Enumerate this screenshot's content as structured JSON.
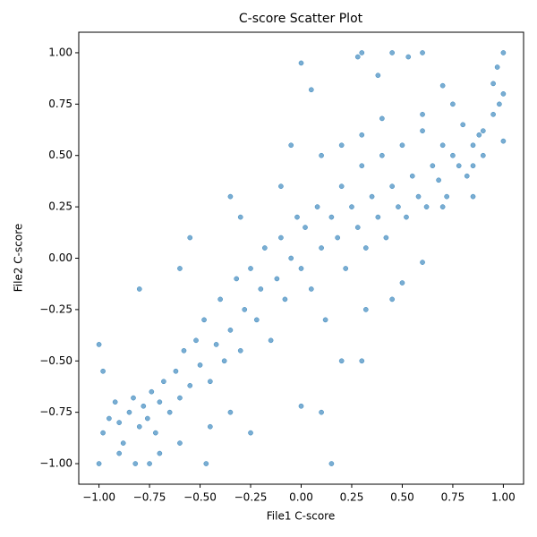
{
  "chart_data": {
    "type": "scatter",
    "title": "C-score Scatter Plot",
    "x_label": "File1 C-score",
    "y_label": "File2 C-score",
    "xlim": [
      -1.1,
      1.1
    ],
    "ylim": [
      -1.1,
      1.1
    ],
    "xticks": [
      {
        "value": -1,
        "label": "−1.00"
      },
      {
        "value": -0.75,
        "label": "−0.75"
      },
      {
        "value": -0.5,
        "label": "−0.50"
      },
      {
        "value": -0.25,
        "label": "−0.25"
      },
      {
        "value": 0,
        "label": "0.00"
      },
      {
        "value": 0.25,
        "label": "0.25"
      },
      {
        "value": 0.5,
        "label": "0.50"
      },
      {
        "value": 0.75,
        "label": "0.75"
      },
      {
        "value": 1,
        "label": "1.00"
      }
    ],
    "yticks": [
      {
        "value": -1,
        "label": "−1.00"
      },
      {
        "value": -0.75,
        "label": "−0.75"
      },
      {
        "value": -0.5,
        "label": "−0.50"
      },
      {
        "value": -0.25,
        "label": "−0.25"
      },
      {
        "value": 0,
        "label": "0.00"
      },
      {
        "value": 0.25,
        "label": "0.25"
      },
      {
        "value": 0.5,
        "label": "0.50"
      },
      {
        "value": 0.75,
        "label": "0.75"
      },
      {
        "value": 1,
        "label": "1.00"
      }
    ],
    "color": "#1f77b4",
    "x": [
      -1,
      -0.75,
      -0.82,
      -0.47,
      0.15,
      -0.98,
      -0.95,
      -0.92,
      -0.9,
      -0.88,
      -0.85,
      -0.83,
      -0.8,
      -0.78,
      -0.76,
      -0.74,
      -0.72,
      -0.7,
      -0.68,
      -0.65,
      -0.62,
      -0.6,
      -0.58,
      -0.55,
      -0.52,
      -0.5,
      -0.48,
      -0.45,
      -0.42,
      -0.4,
      -0.38,
      -0.35,
      -0.32,
      -0.3,
      -0.28,
      -0.25,
      -0.22,
      -0.2,
      -0.18,
      -0.15,
      -0.12,
      -0.1,
      -0.08,
      -0.05,
      -0.02,
      0,
      0.02,
      0.05,
      0.08,
      0.1,
      0.12,
      0.15,
      0.18,
      0.2,
      0.22,
      0.25,
      0.28,
      0.3,
      0.32,
      0.35,
      0.38,
      0.4,
      0.42,
      0.45,
      0.48,
      0.5,
      0.52,
      0.55,
      0.58,
      0.6,
      0.62,
      0.65,
      0.68,
      0.7,
      0.72,
      0.75,
      0.78,
      0.8,
      0.82,
      0.85,
      0.88,
      0.9,
      0.95,
      1,
      0,
      0.05,
      0.3,
      0.45,
      0.6,
      1,
      0.97,
      0.28,
      0.38,
      0.53,
      0.7,
      0.95,
      1,
      -1,
      -0.98,
      -0.8,
      -0.6,
      -0.55,
      -0.35,
      -0.3,
      -0.1,
      0.1,
      0,
      0.2,
      0.3,
      0.32,
      0.45,
      0.6,
      0.5,
      -0.45,
      -0.35,
      -0.25,
      -0.6,
      -0.7,
      -0.9,
      0.7,
      0.85,
      0.3,
      0.1,
      -0.05,
      0.2,
      0.4,
      0.6,
      0.75,
      0.85,
      0.9,
      0.98
    ],
    "y": [
      -1,
      -1,
      -1,
      -1,
      -1,
      -0.85,
      -0.78,
      -0.7,
      -0.8,
      -0.9,
      -0.75,
      -0.68,
      -0.82,
      -0.72,
      -0.78,
      -0.65,
      -0.85,
      -0.7,
      -0.6,
      -0.75,
      -0.55,
      -0.68,
      -0.45,
      -0.62,
      -0.4,
      -0.52,
      -0.3,
      -0.6,
      -0.42,
      -0.2,
      -0.5,
      -0.35,
      -0.1,
      -0.45,
      -0.25,
      -0.05,
      -0.3,
      -0.15,
      0.05,
      -0.4,
      -0.1,
      0.1,
      -0.2,
      0,
      0.2,
      -0.05,
      0.15,
      -0.15,
      0.25,
      0.05,
      -0.3,
      0.2,
      0.1,
      0.35,
      -0.05,
      0.25,
      0.15,
      0.45,
      0.05,
      0.3,
      0.2,
      0.5,
      0.1,
      0.35,
      0.25,
      0.55,
      0.2,
      0.4,
      0.3,
      0.62,
      0.25,
      0.45,
      0.38,
      0.55,
      0.3,
      0.5,
      0.45,
      0.65,
      0.4,
      0.55,
      0.6,
      0.5,
      0.7,
      0.8,
      0.95,
      0.82,
      1,
      1,
      1,
      1,
      0.93,
      0.98,
      0.89,
      0.98,
      0.84,
      0.85,
      0.57,
      -0.42,
      -0.55,
      -0.15,
      -0.05,
      0.1,
      0.3,
      0.2,
      0.35,
      -0.75,
      -0.72,
      -0.5,
      -0.5,
      -0.25,
      -0.2,
      -0.02,
      -0.12,
      -0.82,
      -0.75,
      -0.85,
      -0.9,
      -0.95,
      -0.95,
      0.25,
      0.45,
      0.6,
      0.5,
      0.55,
      0.55,
      0.68,
      0.7,
      0.75,
      0.3,
      0.62,
      0.75
    ]
  }
}
